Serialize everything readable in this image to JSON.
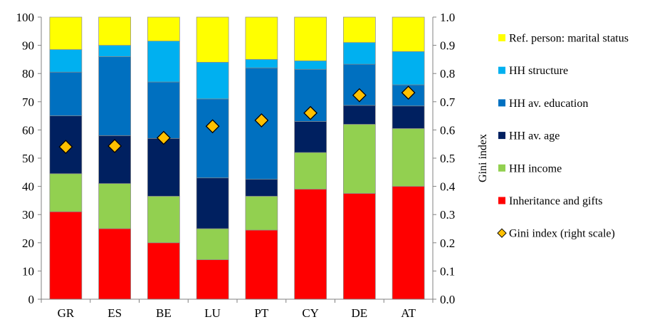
{
  "chart_data": {
    "type": "bar",
    "stacked": true,
    "categories": [
      "GR",
      "ES",
      "BE",
      "LU",
      "PT",
      "CY",
      "DE",
      "AT"
    ],
    "series": [
      {
        "name": "Inheritance and gifts",
        "color": "#ff0000",
        "values": [
          31,
          25,
          20,
          14,
          24.5,
          39,
          37.5,
          40
        ]
      },
      {
        "name": "HH income",
        "color": "#92d050",
        "values": [
          13.5,
          16,
          16.5,
          11,
          12,
          13,
          24.5,
          20.5
        ]
      },
      {
        "name": "HH av. age",
        "color": "#002060",
        "values": [
          20.5,
          17,
          20.5,
          18,
          6,
          11,
          6.7,
          8
        ]
      },
      {
        "name": "HH av. education",
        "color": "#0070c0",
        "values": [
          15.5,
          28,
          20,
          28,
          39.5,
          18.5,
          14.6,
          7.5
        ]
      },
      {
        "name": "HH structure",
        "color": "#00b0f0",
        "values": [
          8,
          4,
          14.5,
          13,
          3,
          3,
          7.7,
          11.8
        ]
      },
      {
        "name": "Ref. person: marital status",
        "color": "#ffff00",
        "values": [
          11.5,
          10,
          8.5,
          16,
          15,
          15.5,
          9,
          12.2
        ]
      }
    ],
    "line_series": {
      "name": "Gini index (right scale)",
      "axis": "right",
      "marker": "diamond",
      "color": "#ffc000",
      "values": [
        0.54,
        0.543,
        0.572,
        0.613,
        0.634,
        0.66,
        0.723,
        0.732
      ]
    },
    "y_left": {
      "min": 0,
      "max": 100,
      "ticks": [
        "0",
        "10",
        "20",
        "30",
        "40",
        "50",
        "60",
        "70",
        "80",
        "90",
        "100"
      ]
    },
    "y_right": {
      "min": 0,
      "max": 1,
      "label": "Gini index",
      "ticks": [
        "0.0",
        "0.1",
        "0.2",
        "0.3",
        "0.4",
        "0.5",
        "0.6",
        "0.7",
        "0.8",
        "0.9",
        "1.0"
      ]
    },
    "legend_order": [
      "Ref. person: marital status",
      "HH structure",
      "HH av. education",
      "HH av. age",
      "HH income",
      "Inheritance and gifts",
      "Gini index (right scale)"
    ],
    "legend_placement": "right",
    "grid": false
  }
}
